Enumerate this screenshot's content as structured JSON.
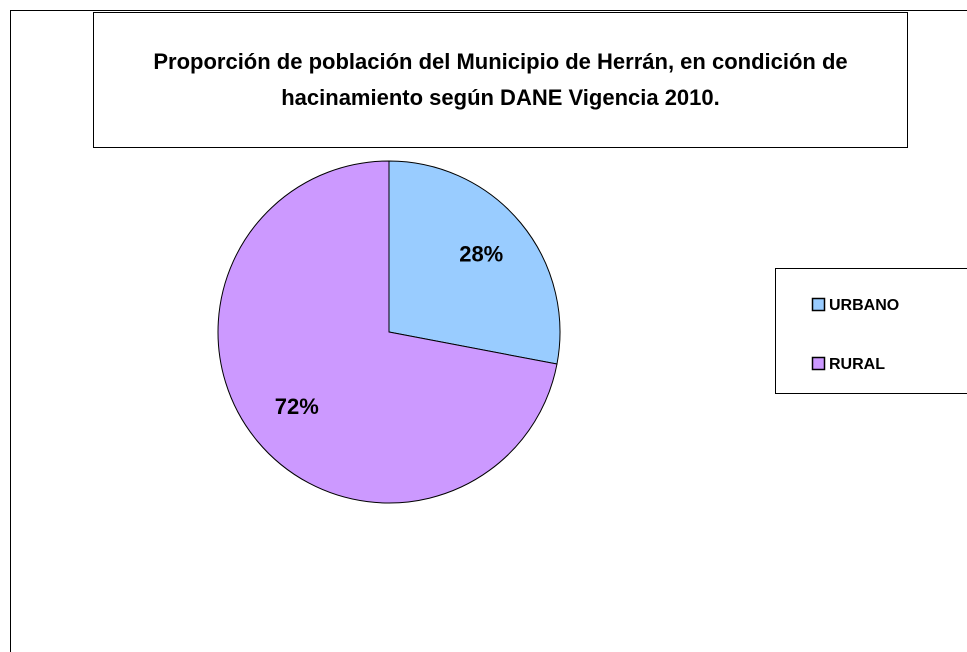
{
  "chart_data": {
    "type": "pie",
    "title": "Proporción de población del Municipio de Herrán, en condición de hacinamiento según DANE Vigencia 2010.",
    "categories": [
      "URBANO",
      "RURAL"
    ],
    "values": [
      28,
      72
    ],
    "value_labels": [
      "28%",
      "72%"
    ],
    "colors": [
      "#99ccff",
      "#cc99ff"
    ],
    "legend": "right"
  }
}
